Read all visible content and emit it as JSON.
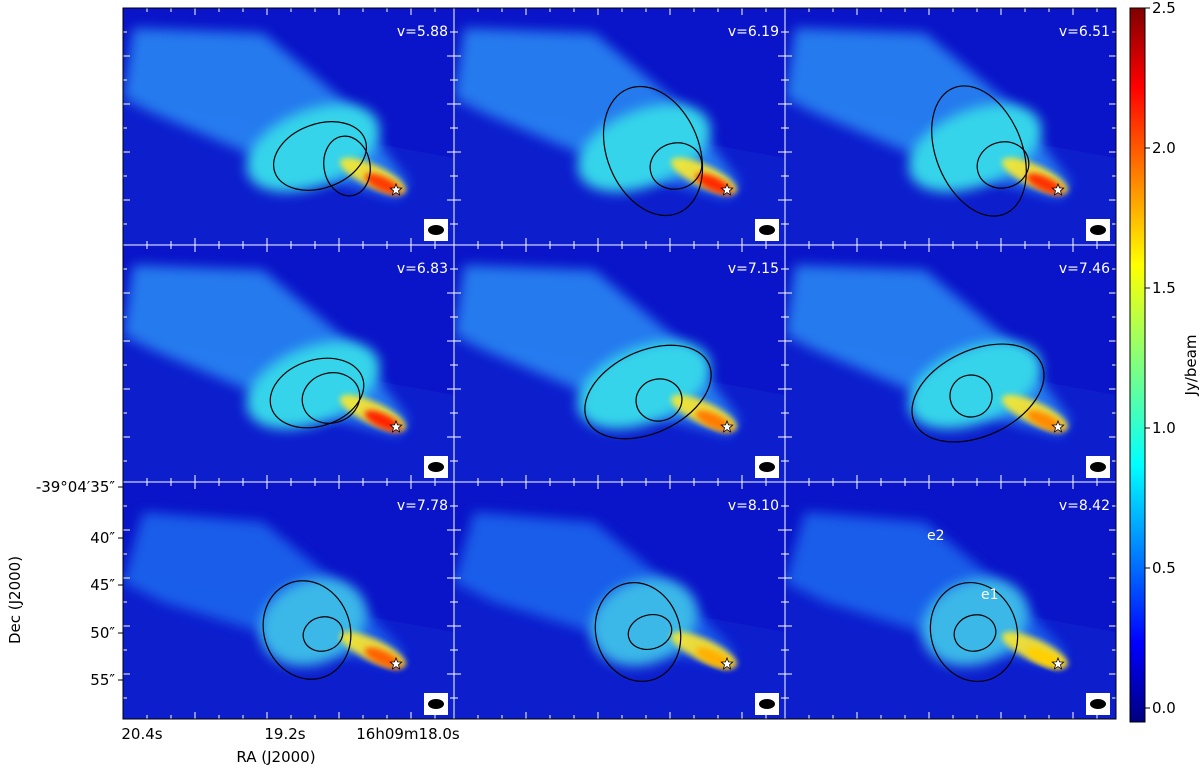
{
  "chart_data": {
    "type": "heatmap",
    "description_units": "channel maps, colour = intensity in Jy/beam",
    "panels": [
      {
        "velocity_label": "v=5.88",
        "ellipses": [
          "large",
          "small"
        ]
      },
      {
        "velocity_label": "v=6.19",
        "ellipses": [
          "large",
          "small"
        ]
      },
      {
        "velocity_label": "v=6.51",
        "ellipses": [
          "large",
          "small"
        ]
      },
      {
        "velocity_label": "v=6.83",
        "ellipses": [
          "large",
          "small"
        ]
      },
      {
        "velocity_label": "v=7.15",
        "ellipses": [
          "large",
          "small"
        ]
      },
      {
        "velocity_label": "v=7.46",
        "ellipses": [
          "large",
          "small"
        ]
      },
      {
        "velocity_label": "v=7.78",
        "ellipses": [
          "large",
          "small"
        ]
      },
      {
        "velocity_label": "v=8.10",
        "ellipses": [
          "large",
          "small"
        ]
      },
      {
        "velocity_label": "v=8.42",
        "ellipses": [
          "large",
          "small"
        ],
        "annotations": [
          "e2",
          "e1"
        ]
      }
    ],
    "xlabel": "RA (J2000)",
    "ylabel": "Dec (J2000)",
    "xticklabels": [
      "20.4s",
      "19.2s",
      "16h09m18.0s"
    ],
    "yticklabels": [
      "-39°04′35″",
      "40″",
      "45″",
      "50″",
      "55″"
    ],
    "colorbar": {
      "label": "Jy/beam",
      "range": [
        -0.05,
        2.5
      ],
      "ticks": [
        "0.0",
        "0.5",
        "1.0",
        "1.5",
        "2.0",
        "2.5"
      ],
      "colormap": "jet"
    },
    "marker": "star",
    "beam": "filled ellipse, lower-right of each panel"
  }
}
